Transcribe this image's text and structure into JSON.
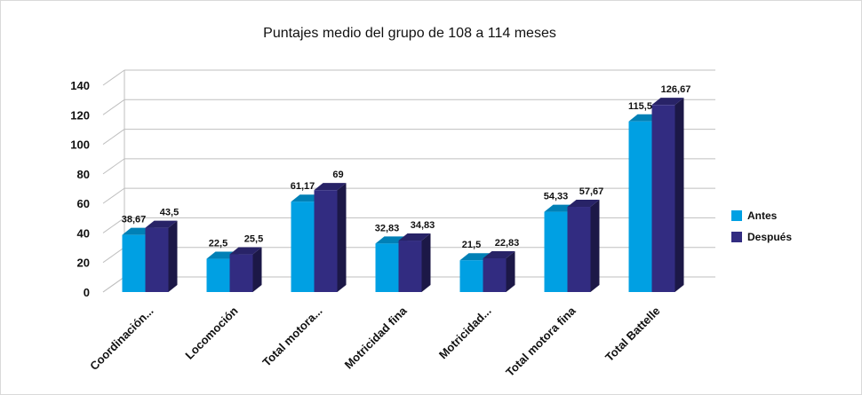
{
  "chart_data": {
    "type": "bar",
    "title": "Puntajes medio del grupo de 108 a 114 meses",
    "categories": [
      "Coordinación...",
      "Locomoción",
      "Total motora...",
      "Motricidad fina",
      "Motricidad...",
      "Total motora fina",
      "Total Battelle"
    ],
    "series": [
      {
        "name": "Antes",
        "color": "#00a0e3",
        "values": [
          38.67,
          22.5,
          61.17,
          32.83,
          21.5,
          54.33,
          115.5
        ],
        "labels": [
          "38,67",
          "22,5",
          "61,17",
          "32,83",
          "21,5",
          "54,33",
          "115,5"
        ]
      },
      {
        "name": "Después",
        "color": "#322c81",
        "values": [
          43.5,
          25.5,
          69,
          34.83,
          22.83,
          57.67,
          126.67
        ],
        "labels": [
          "43,5",
          "25,5",
          "69",
          "34,83",
          "22,83",
          "57,67",
          "126,67"
        ]
      }
    ],
    "yticks": [
      "0",
      "20",
      "40",
      "60",
      "80",
      "100",
      "120",
      "140"
    ],
    "ylim": [
      0,
      140
    ],
    "grid": true,
    "legend": "right",
    "style": "3d-clustered-column"
  }
}
